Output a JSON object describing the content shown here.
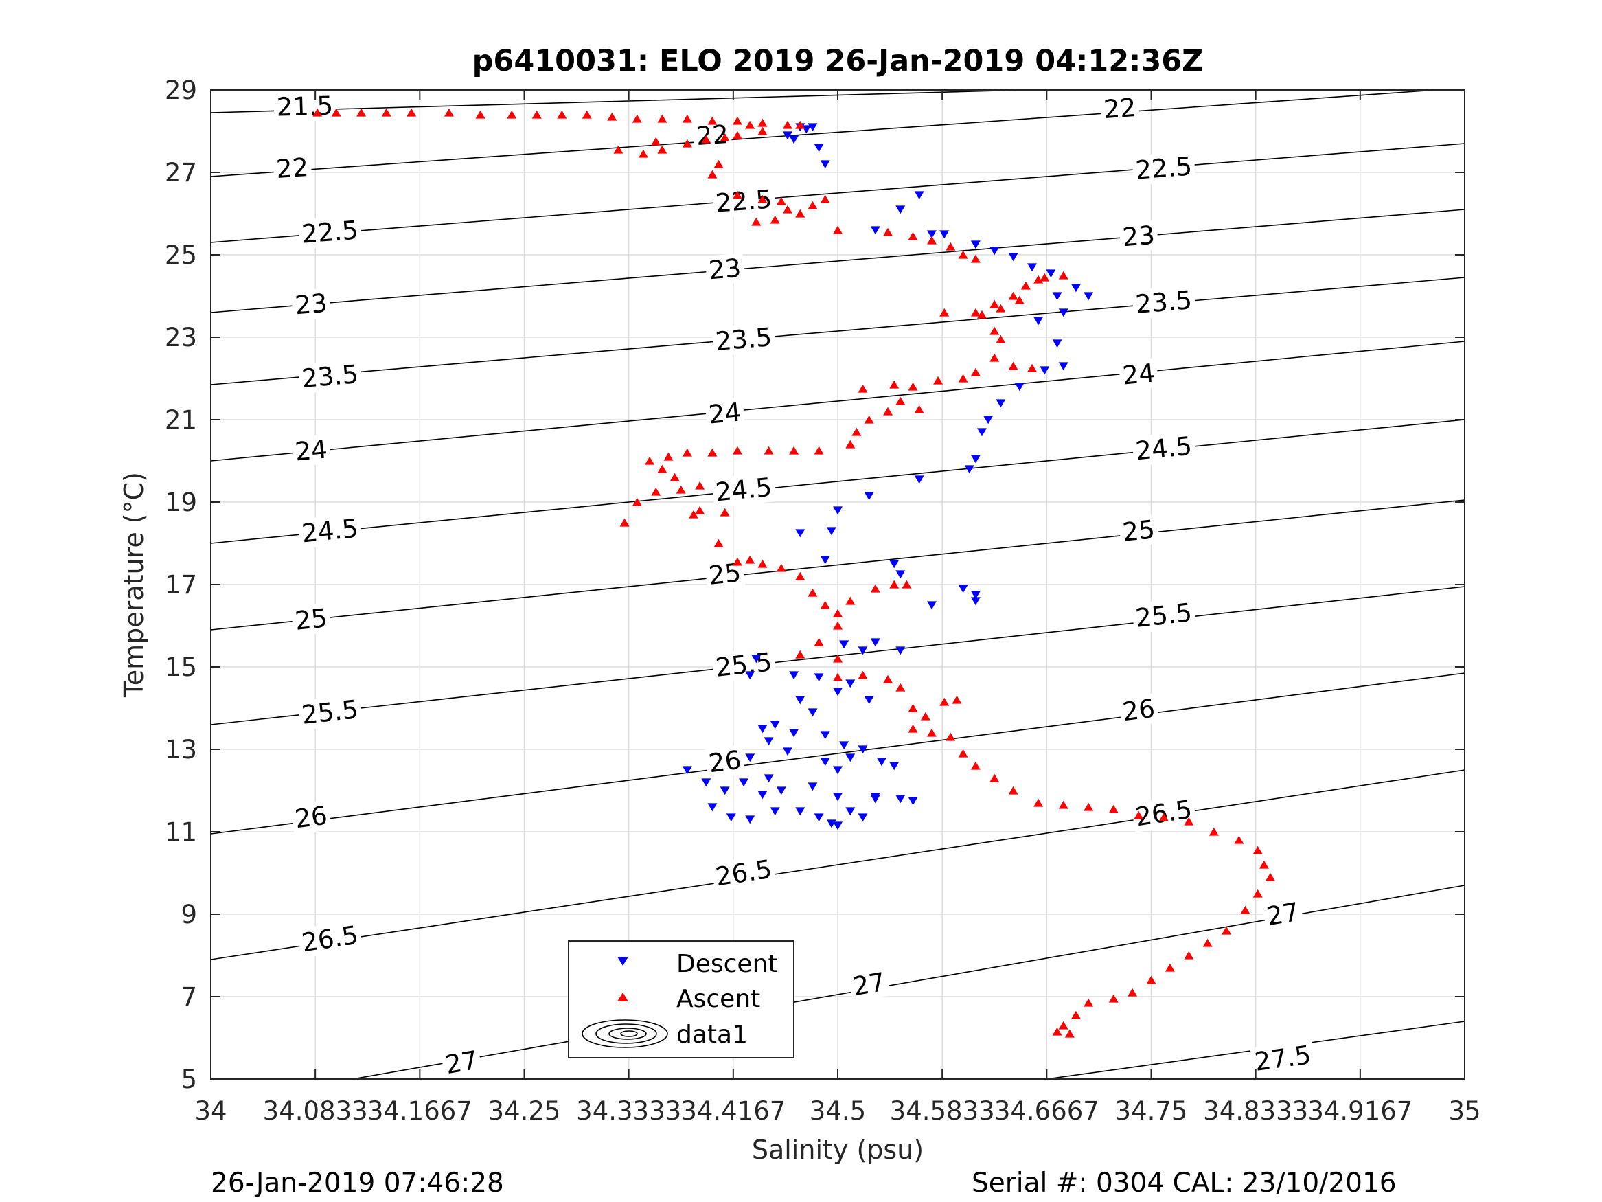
{
  "chart_data": {
    "type": "scatter",
    "title": "p6410031: ELO 2019 26-Jan-2019 04:12:36Z",
    "xlabel": "Salinity (psu)",
    "ylabel": "Temperature (°C)",
    "xlim": [
      34,
      35
    ],
    "ylim": [
      5,
      29
    ],
    "xticks": [
      "34",
      "34.0833",
      "34.1667",
      "34.25",
      "34.3333",
      "34.4167",
      "34.5",
      "34.5833",
      "34.6667",
      "34.75",
      "34.8333",
      "34.9167",
      "35"
    ],
    "yticks": [
      "5",
      "7",
      "9",
      "11",
      "13",
      "15",
      "17",
      "19",
      "21",
      "23",
      "25",
      "27",
      "29"
    ],
    "grid": true,
    "legend": [
      "Descent",
      "Ascent",
      "data1"
    ],
    "legend_position": "bottom-center",
    "colors": {
      "descent": "#0000ff",
      "ascent": "#ff0000",
      "contour": "#000000",
      "grid": "#dddddd"
    },
    "density_contours": [
      {
        "sigma": "21.5",
        "y0": 28.45,
        "y1": 29.3,
        "labels": [
          [
            0.075,
            28.6
          ]
        ]
      },
      {
        "sigma": "22",
        "y0": 26.9,
        "y1": 29.05,
        "labels": [
          [
            0.065,
            27.1
          ],
          [
            0.4,
            27.9
          ],
          [
            0.725,
            28.55
          ]
        ]
      },
      {
        "sigma": "22.5",
        "y0": 25.3,
        "y1": 27.7,
        "labels": [
          [
            0.095,
            25.55
          ],
          [
            0.425,
            26.3
          ],
          [
            0.76,
            27.1
          ]
        ]
      },
      {
        "sigma": "23",
        "y0": 23.6,
        "y1": 26.1,
        "labels": [
          [
            0.08,
            23.8
          ],
          [
            0.41,
            24.65
          ],
          [
            0.74,
            25.45
          ]
        ]
      },
      {
        "sigma": "23.5",
        "y0": 21.85,
        "y1": 24.45,
        "labels": [
          [
            0.095,
            22.05
          ],
          [
            0.425,
            22.95
          ],
          [
            0.76,
            23.85
          ]
        ]
      },
      {
        "sigma": "24",
        "y0": 20.0,
        "y1": 22.9,
        "labels": [
          [
            0.08,
            20.25
          ],
          [
            0.41,
            21.15
          ],
          [
            0.74,
            22.1
          ]
        ]
      },
      {
        "sigma": "24.5",
        "y0": 18.0,
        "y1": 21.0,
        "labels": [
          [
            0.095,
            18.3
          ],
          [
            0.425,
            19.3
          ],
          [
            0.76,
            20.3
          ]
        ]
      },
      {
        "sigma": "25",
        "y0": 15.9,
        "y1": 19.05,
        "labels": [
          [
            0.08,
            16.15
          ],
          [
            0.41,
            17.25
          ],
          [
            0.74,
            18.3
          ]
        ]
      },
      {
        "sigma": "25.5",
        "y0": 13.6,
        "y1": 16.95,
        "labels": [
          [
            0.095,
            13.9
          ],
          [
            0.425,
            15.05
          ],
          [
            0.76,
            16.25
          ]
        ]
      },
      {
        "sigma": "26",
        "y0": 10.95,
        "y1": 14.85,
        "labels": [
          [
            0.08,
            11.35
          ],
          [
            0.41,
            12.7
          ],
          [
            0.74,
            13.95
          ]
        ]
      },
      {
        "sigma": "26.5",
        "y0": 7.9,
        "y1": 12.5,
        "labels": [
          [
            0.095,
            8.4
          ],
          [
            0.425,
            10.0
          ],
          [
            0.76,
            11.45
          ]
        ]
      },
      {
        "sigma": "27",
        "y0": 4.4,
        "y1": 9.7,
        "labels": [
          [
            0.2,
            5.4
          ],
          [
            0.525,
            7.3
          ],
          [
            0.855,
            9.0
          ]
        ]
      },
      {
        "sigma": "27.5",
        "y0": 2.2,
        "y1": 6.4,
        "labels": [
          [
            0.855,
            5.5
          ]
        ]
      }
    ],
    "series": [
      {
        "name": "Descent",
        "marker": "triangle-down",
        "points": [
          [
            34.47,
            28.1
          ],
          [
            34.46,
            27.9
          ],
          [
            34.465,
            27.8
          ],
          [
            34.475,
            28.05
          ],
          [
            34.48,
            28.1
          ],
          [
            34.485,
            27.6
          ],
          [
            34.49,
            27.2
          ],
          [
            34.53,
            25.6
          ],
          [
            34.55,
            26.1
          ],
          [
            34.565,
            26.45
          ],
          [
            34.575,
            25.5
          ],
          [
            34.585,
            25.5
          ],
          [
            34.61,
            25.25
          ],
          [
            34.625,
            25.1
          ],
          [
            34.64,
            24.95
          ],
          [
            34.655,
            24.7
          ],
          [
            34.67,
            24.55
          ],
          [
            34.675,
            24.0
          ],
          [
            34.69,
            24.2
          ],
          [
            34.7,
            24.0
          ],
          [
            34.68,
            23.6
          ],
          [
            34.66,
            23.4
          ],
          [
            34.675,
            22.85
          ],
          [
            34.68,
            22.3
          ],
          [
            34.665,
            22.2
          ],
          [
            34.645,
            21.8
          ],
          [
            34.63,
            21.4
          ],
          [
            34.62,
            21.0
          ],
          [
            34.615,
            20.7
          ],
          [
            34.61,
            20.05
          ],
          [
            34.605,
            19.8
          ],
          [
            34.565,
            19.55
          ],
          [
            34.525,
            19.15
          ],
          [
            34.5,
            18.8
          ],
          [
            34.495,
            18.3
          ],
          [
            34.47,
            18.25
          ],
          [
            34.49,
            17.6
          ],
          [
            34.545,
            17.5
          ],
          [
            34.55,
            17.25
          ],
          [
            34.575,
            16.5
          ],
          [
            34.6,
            16.9
          ],
          [
            34.61,
            16.75
          ],
          [
            34.61,
            16.6
          ],
          [
            34.435,
            15.2
          ],
          [
            34.43,
            14.8
          ],
          [
            34.465,
            14.8
          ],
          [
            34.485,
            14.75
          ],
          [
            34.505,
            15.55
          ],
          [
            34.52,
            15.4
          ],
          [
            34.53,
            15.6
          ],
          [
            34.55,
            15.4
          ],
          [
            34.5,
            14.4
          ],
          [
            34.51,
            14.6
          ],
          [
            34.525,
            14.2
          ],
          [
            34.47,
            14.2
          ],
          [
            34.48,
            13.9
          ],
          [
            34.45,
            13.6
          ],
          [
            34.44,
            13.5
          ],
          [
            34.465,
            13.4
          ],
          [
            34.49,
            13.35
          ],
          [
            34.505,
            13.1
          ],
          [
            34.52,
            13.0
          ],
          [
            34.535,
            12.7
          ],
          [
            34.545,
            12.6
          ],
          [
            34.46,
            12.95
          ],
          [
            34.445,
            13.2
          ],
          [
            34.43,
            12.8
          ],
          [
            34.49,
            12.7
          ],
          [
            34.5,
            12.5
          ],
          [
            34.51,
            12.8
          ],
          [
            34.445,
            12.3
          ],
          [
            34.425,
            12.2
          ],
          [
            34.41,
            12.0
          ],
          [
            34.4,
            11.6
          ],
          [
            34.415,
            11.35
          ],
          [
            34.43,
            11.3
          ],
          [
            34.45,
            11.5
          ],
          [
            34.47,
            11.5
          ],
          [
            34.485,
            11.35
          ],
          [
            34.495,
            11.2
          ],
          [
            34.5,
            11.15
          ],
          [
            34.51,
            11.5
          ],
          [
            34.53,
            11.8
          ],
          [
            34.55,
            11.8
          ],
          [
            34.56,
            11.75
          ],
          [
            34.5,
            11.85
          ],
          [
            34.48,
            12.1
          ],
          [
            34.455,
            12.0
          ],
          [
            34.44,
            11.9
          ],
          [
            34.38,
            12.5
          ],
          [
            34.395,
            12.2
          ],
          [
            34.52,
            11.35
          ],
          [
            34.53,
            11.85
          ]
        ]
      },
      {
        "name": "Ascent",
        "marker": "triangle-up",
        "points": [
          [
            34.085,
            28.45
          ],
          [
            34.1,
            28.45
          ],
          [
            34.12,
            28.45
          ],
          [
            34.14,
            28.45
          ],
          [
            34.16,
            28.45
          ],
          [
            34.19,
            28.45
          ],
          [
            34.215,
            28.4
          ],
          [
            34.24,
            28.4
          ],
          [
            34.26,
            28.4
          ],
          [
            34.28,
            28.4
          ],
          [
            34.3,
            28.4
          ],
          [
            34.32,
            28.35
          ],
          [
            34.34,
            28.3
          ],
          [
            34.36,
            28.3
          ],
          [
            34.38,
            28.3
          ],
          [
            34.4,
            28.25
          ],
          [
            34.42,
            28.25
          ],
          [
            34.44,
            28.2
          ],
          [
            34.46,
            28.15
          ],
          [
            34.47,
            28.15
          ],
          [
            34.43,
            28.15
          ],
          [
            34.44,
            28.0
          ],
          [
            34.42,
            27.9
          ],
          [
            34.41,
            27.85
          ],
          [
            34.395,
            27.8
          ],
          [
            34.38,
            27.7
          ],
          [
            34.36,
            27.55
          ],
          [
            34.345,
            27.45
          ],
          [
            34.325,
            27.55
          ],
          [
            34.355,
            27.75
          ],
          [
            34.405,
            27.2
          ],
          [
            34.4,
            26.95
          ],
          [
            34.42,
            26.45
          ],
          [
            34.44,
            26.35
          ],
          [
            34.455,
            26.3
          ],
          [
            34.46,
            26.1
          ],
          [
            34.47,
            26.0
          ],
          [
            34.48,
            26.2
          ],
          [
            34.49,
            26.35
          ],
          [
            34.45,
            25.85
          ],
          [
            34.435,
            25.8
          ],
          [
            34.5,
            25.6
          ],
          [
            34.54,
            25.55
          ],
          [
            34.56,
            25.45
          ],
          [
            34.575,
            25.35
          ],
          [
            34.59,
            25.2
          ],
          [
            34.6,
            25.0
          ],
          [
            34.61,
            24.9
          ],
          [
            34.585,
            23.6
          ],
          [
            34.61,
            23.6
          ],
          [
            34.625,
            23.8
          ],
          [
            34.64,
            24.0
          ],
          [
            34.65,
            24.25
          ],
          [
            34.665,
            24.45
          ],
          [
            34.68,
            24.5
          ],
          [
            34.66,
            24.4
          ],
          [
            34.645,
            23.9
          ],
          [
            34.63,
            23.7
          ],
          [
            34.615,
            23.55
          ],
          [
            34.625,
            23.15
          ],
          [
            34.63,
            22.95
          ],
          [
            34.625,
            22.5
          ],
          [
            34.64,
            22.3
          ],
          [
            34.655,
            22.25
          ],
          [
            34.61,
            22.15
          ],
          [
            34.6,
            22.0
          ],
          [
            34.58,
            21.95
          ],
          [
            34.56,
            21.8
          ],
          [
            34.545,
            21.85
          ],
          [
            34.52,
            21.75
          ],
          [
            34.55,
            21.45
          ],
          [
            34.565,
            21.25
          ],
          [
            34.54,
            21.2
          ],
          [
            34.525,
            21.0
          ],
          [
            34.515,
            20.7
          ],
          [
            34.51,
            20.4
          ],
          [
            34.485,
            20.25
          ],
          [
            34.465,
            20.25
          ],
          [
            34.445,
            20.25
          ],
          [
            34.42,
            20.25
          ],
          [
            34.4,
            20.2
          ],
          [
            34.38,
            20.2
          ],
          [
            34.365,
            20.1
          ],
          [
            34.35,
            20.0
          ],
          [
            34.36,
            19.8
          ],
          [
            34.37,
            19.6
          ],
          [
            34.39,
            19.4
          ],
          [
            34.375,
            19.3
          ],
          [
            34.355,
            19.25
          ],
          [
            34.34,
            19.0
          ],
          [
            34.33,
            18.5
          ],
          [
            34.385,
            18.7
          ],
          [
            34.39,
            18.8
          ],
          [
            34.41,
            18.75
          ],
          [
            34.405,
            18.0
          ],
          [
            34.42,
            17.55
          ],
          [
            34.43,
            17.6
          ],
          [
            34.44,
            17.5
          ],
          [
            34.455,
            17.4
          ],
          [
            34.47,
            17.2
          ],
          [
            34.48,
            16.8
          ],
          [
            34.49,
            16.5
          ],
          [
            34.5,
            16.3
          ],
          [
            34.51,
            16.6
          ],
          [
            34.53,
            16.9
          ],
          [
            34.545,
            17.0
          ],
          [
            34.555,
            17.0
          ],
          [
            34.5,
            16.0
          ],
          [
            34.485,
            15.6
          ],
          [
            34.47,
            15.3
          ],
          [
            34.5,
            15.2
          ],
          [
            34.5,
            14.75
          ],
          [
            34.52,
            14.8
          ],
          [
            34.54,
            14.7
          ],
          [
            34.55,
            14.5
          ],
          [
            34.56,
            14.0
          ],
          [
            34.57,
            13.8
          ],
          [
            34.585,
            14.15
          ],
          [
            34.595,
            14.2
          ],
          [
            34.56,
            13.5
          ],
          [
            34.575,
            13.4
          ],
          [
            34.59,
            13.3
          ],
          [
            34.6,
            12.9
          ],
          [
            34.61,
            12.6
          ],
          [
            34.625,
            12.3
          ],
          [
            34.64,
            12.0
          ],
          [
            34.66,
            11.7
          ],
          [
            34.68,
            11.65
          ],
          [
            34.7,
            11.6
          ],
          [
            34.72,
            11.55
          ],
          [
            34.74,
            11.4
          ],
          [
            34.76,
            11.35
          ],
          [
            34.78,
            11.25
          ],
          [
            34.8,
            11.0
          ],
          [
            34.82,
            10.8
          ],
          [
            34.835,
            10.55
          ],
          [
            34.84,
            10.2
          ],
          [
            34.845,
            9.9
          ],
          [
            34.835,
            9.5
          ],
          [
            34.825,
            9.1
          ],
          [
            34.81,
            8.6
          ],
          [
            34.795,
            8.3
          ],
          [
            34.78,
            8.0
          ],
          [
            34.765,
            7.7
          ],
          [
            34.75,
            7.4
          ],
          [
            34.735,
            7.1
          ],
          [
            34.72,
            6.95
          ],
          [
            34.7,
            6.85
          ],
          [
            34.69,
            6.55
          ],
          [
            34.68,
            6.3
          ],
          [
            34.675,
            6.15
          ],
          [
            34.685,
            6.1
          ]
        ]
      }
    ]
  },
  "footer": {
    "left": "26-Jan-2019 07:46:28",
    "right": "Serial #: 0304  CAL: 23/10/2016"
  }
}
